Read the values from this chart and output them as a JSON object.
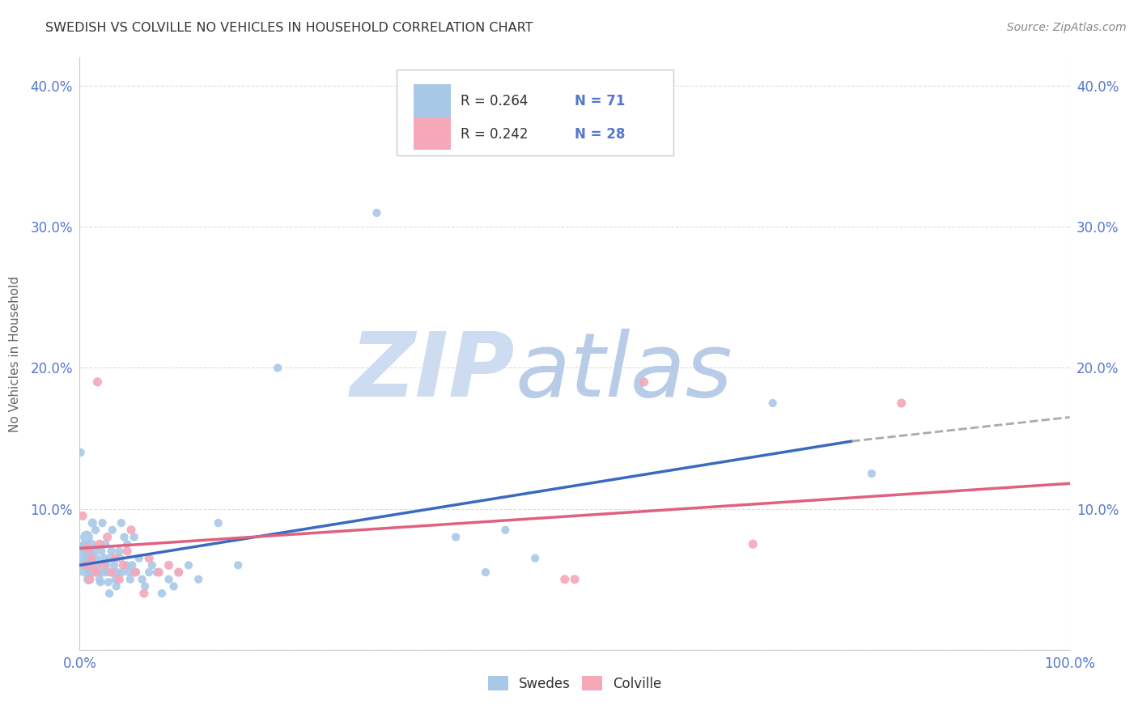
{
  "title": "SWEDISH VS COLVILLE NO VEHICLES IN HOUSEHOLD CORRELATION CHART",
  "source": "Source: ZipAtlas.com",
  "ylabel": "No Vehicles in Household",
  "xlim": [
    0.0,
    1.0
  ],
  "ylim": [
    0.0,
    0.42
  ],
  "xtick_positions": [
    0.0,
    1.0
  ],
  "xtick_labels": [
    "0.0%",
    "100.0%"
  ],
  "ytick_positions": [
    0.0,
    0.1,
    0.2,
    0.3,
    0.4
  ],
  "ytick_labels": [
    "",
    "10.0%",
    "20.0%",
    "30.0%",
    "40.0%"
  ],
  "legend_r_swedish": "R = 0.264",
  "legend_n_swedish": "N = 71",
  "legend_r_colville": "R = 0.242",
  "legend_n_colville": "N = 28",
  "swedish_color": "#a8c8e8",
  "colville_color": "#f4a8b8",
  "trend_swedish_color": "#3a6abf",
  "trend_colville_color": "#e06080",
  "trend_swedish_solid_end": 0.78,
  "watermark_zip": "ZIP",
  "watermark_atlas": "atlas",
  "watermark_color_zip": "#c8d8f0",
  "watermark_color_atlas": "#b0c8e8",
  "background_color": "#ffffff",
  "title_color": "#333333",
  "axis_label_color": "#5577cc",
  "grid_color": "#dddddd",
  "swedish_points": [
    [
      0.003,
      0.068
    ],
    [
      0.005,
      0.058
    ],
    [
      0.006,
      0.072
    ],
    [
      0.007,
      0.08
    ],
    [
      0.008,
      0.065
    ],
    [
      0.009,
      0.05
    ],
    [
      0.01,
      0.055
    ],
    [
      0.011,
      0.06
    ],
    [
      0.012,
      0.075
    ],
    [
      0.013,
      0.09
    ],
    [
      0.013,
      0.06
    ],
    [
      0.014,
      0.055
    ],
    [
      0.015,
      0.07
    ],
    [
      0.016,
      0.085
    ],
    [
      0.017,
      0.065
    ],
    [
      0.018,
      0.06
    ],
    [
      0.019,
      0.055
    ],
    [
      0.02,
      0.05
    ],
    [
      0.021,
      0.048
    ],
    [
      0.022,
      0.07
    ],
    [
      0.023,
      0.09
    ],
    [
      0.024,
      0.055
    ],
    [
      0.025,
      0.065
    ],
    [
      0.026,
      0.075
    ],
    [
      0.027,
      0.06
    ],
    [
      0.028,
      0.055
    ],
    [
      0.029,
      0.048
    ],
    [
      0.03,
      0.04
    ],
    [
      0.031,
      0.065
    ],
    [
      0.032,
      0.07
    ],
    [
      0.033,
      0.085
    ],
    [
      0.034,
      0.055
    ],
    [
      0.035,
      0.06
    ],
    [
      0.036,
      0.05
    ],
    [
      0.037,
      0.045
    ],
    [
      0.038,
      0.055
    ],
    [
      0.04,
      0.07
    ],
    [
      0.041,
      0.065
    ],
    [
      0.042,
      0.09
    ],
    [
      0.043,
      0.055
    ],
    [
      0.045,
      0.08
    ],
    [
      0.047,
      0.06
    ],
    [
      0.048,
      0.075
    ],
    [
      0.05,
      0.055
    ],
    [
      0.051,
      0.05
    ],
    [
      0.053,
      0.06
    ],
    [
      0.055,
      0.08
    ],
    [
      0.057,
      0.055
    ],
    [
      0.06,
      0.065
    ],
    [
      0.063,
      0.05
    ],
    [
      0.066,
      0.045
    ],
    [
      0.07,
      0.055
    ],
    [
      0.073,
      0.06
    ],
    [
      0.078,
      0.055
    ],
    [
      0.083,
      0.04
    ],
    [
      0.09,
      0.05
    ],
    [
      0.095,
      0.045
    ],
    [
      0.1,
      0.055
    ],
    [
      0.11,
      0.06
    ],
    [
      0.12,
      0.05
    ],
    [
      0.14,
      0.09
    ],
    [
      0.16,
      0.06
    ],
    [
      0.2,
      0.2
    ],
    [
      0.3,
      0.31
    ],
    [
      0.38,
      0.08
    ],
    [
      0.41,
      0.055
    ],
    [
      0.43,
      0.085
    ],
    [
      0.46,
      0.065
    ],
    [
      0.7,
      0.175
    ],
    [
      0.8,
      0.125
    ],
    [
      0.001,
      0.14
    ]
  ],
  "colville_points": [
    [
      0.003,
      0.095
    ],
    [
      0.006,
      0.06
    ],
    [
      0.008,
      0.072
    ],
    [
      0.01,
      0.05
    ],
    [
      0.012,
      0.065
    ],
    [
      0.014,
      0.058
    ],
    [
      0.016,
      0.055
    ],
    [
      0.018,
      0.19
    ],
    [
      0.02,
      0.075
    ],
    [
      0.024,
      0.06
    ],
    [
      0.028,
      0.08
    ],
    [
      0.032,
      0.055
    ],
    [
      0.036,
      0.065
    ],
    [
      0.04,
      0.05
    ],
    [
      0.044,
      0.06
    ],
    [
      0.048,
      0.07
    ],
    [
      0.052,
      0.085
    ],
    [
      0.056,
      0.055
    ],
    [
      0.065,
      0.04
    ],
    [
      0.07,
      0.065
    ],
    [
      0.08,
      0.055
    ],
    [
      0.09,
      0.06
    ],
    [
      0.1,
      0.055
    ],
    [
      0.49,
      0.05
    ],
    [
      0.5,
      0.05
    ],
    [
      0.57,
      0.19
    ],
    [
      0.68,
      0.075
    ],
    [
      0.83,
      0.175
    ]
  ],
  "swedish_sizes": [
    500,
    220,
    160,
    130,
    110,
    85,
    75,
    65,
    65,
    65,
    60,
    60,
    55,
    55,
    55,
    55,
    55,
    55,
    55,
    55,
    55,
    55,
    55,
    55,
    55,
    55,
    55,
    55,
    55,
    55,
    55,
    55,
    55,
    55,
    55,
    55,
    55,
    55,
    55,
    55,
    55,
    55,
    55,
    55,
    55,
    55,
    55,
    55,
    55,
    55,
    55,
    55,
    55,
    55,
    55,
    55,
    55,
    55,
    55,
    55,
    55,
    55,
    55,
    55,
    55,
    55,
    55,
    55,
    55,
    55,
    55
  ],
  "colville_sizes": [
    65,
    65,
    65,
    65,
    65,
    65,
    65,
    65,
    65,
    65,
    65,
    65,
    65,
    65,
    65,
    65,
    65,
    65,
    65,
    65,
    65,
    65,
    65,
    65,
    65,
    65,
    65,
    65
  ],
  "trend_sw_x0": 0.0,
  "trend_sw_y0": 0.06,
  "trend_sw_x1": 0.78,
  "trend_sw_y1": 0.148,
  "trend_sw_dash_x0": 0.78,
  "trend_sw_dash_y0": 0.148,
  "trend_sw_dash_x1": 1.0,
  "trend_sw_dash_y1": 0.165,
  "trend_co_x0": 0.0,
  "trend_co_y0": 0.072,
  "trend_co_x1": 1.0,
  "trend_co_y1": 0.118
}
